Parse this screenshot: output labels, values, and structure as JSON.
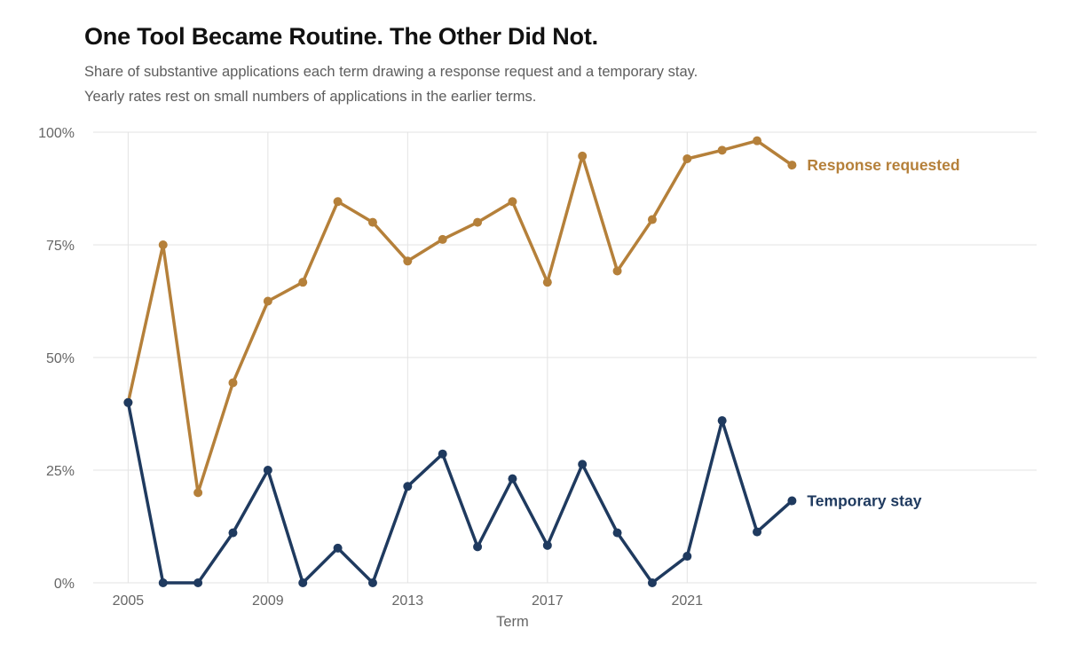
{
  "chart_data": {
    "type": "line",
    "title": "One Tool Became Routine. The Other Did Not.",
    "subtitle": [
      "Share of substantive applications each term drawing a response request and a temporary stay.",
      "Yearly rates rest on small numbers of applications in the earlier terms."
    ],
    "xlabel": "Term",
    "ylabel": "",
    "x": [
      2005,
      2006,
      2007,
      2008,
      2009,
      2010,
      2011,
      2012,
      2013,
      2014,
      2015,
      2016,
      2017,
      2018,
      2019,
      2020,
      2021,
      2022,
      2023,
      2024
    ],
    "xlim": [
      2004,
      2031
    ],
    "ylim": [
      0,
      100
    ],
    "x_ticks": [
      2005,
      2009,
      2013,
      2017,
      2021
    ],
    "x_tick_labels": [
      "2005",
      "2009",
      "2013",
      "2017",
      "2021"
    ],
    "y_ticks": [
      0,
      25,
      50,
      75,
      100
    ],
    "y_tick_labels": [
      "0%",
      "25%",
      "50%",
      "75%",
      "100%"
    ],
    "grid": true,
    "legend": "direct labels at line ends",
    "series": [
      {
        "name": "Response requested",
        "color": "#b5803a",
        "values": [
          40,
          75,
          20,
          44.4,
          62.5,
          66.7,
          84.6,
          80,
          71.4,
          76.2,
          80,
          84.6,
          66.7,
          94.7,
          69.2,
          80.6,
          94.1,
          96,
          98.1,
          92.7
        ]
      },
      {
        "name": "Temporary stay",
        "color": "#1f3a5f",
        "values": [
          40,
          0,
          0,
          11.1,
          25,
          0,
          7.7,
          0,
          21.4,
          28.6,
          8,
          23.1,
          8.3,
          26.3,
          11.1,
          0,
          5.9,
          36,
          11.3,
          18.2
        ]
      }
    ]
  }
}
